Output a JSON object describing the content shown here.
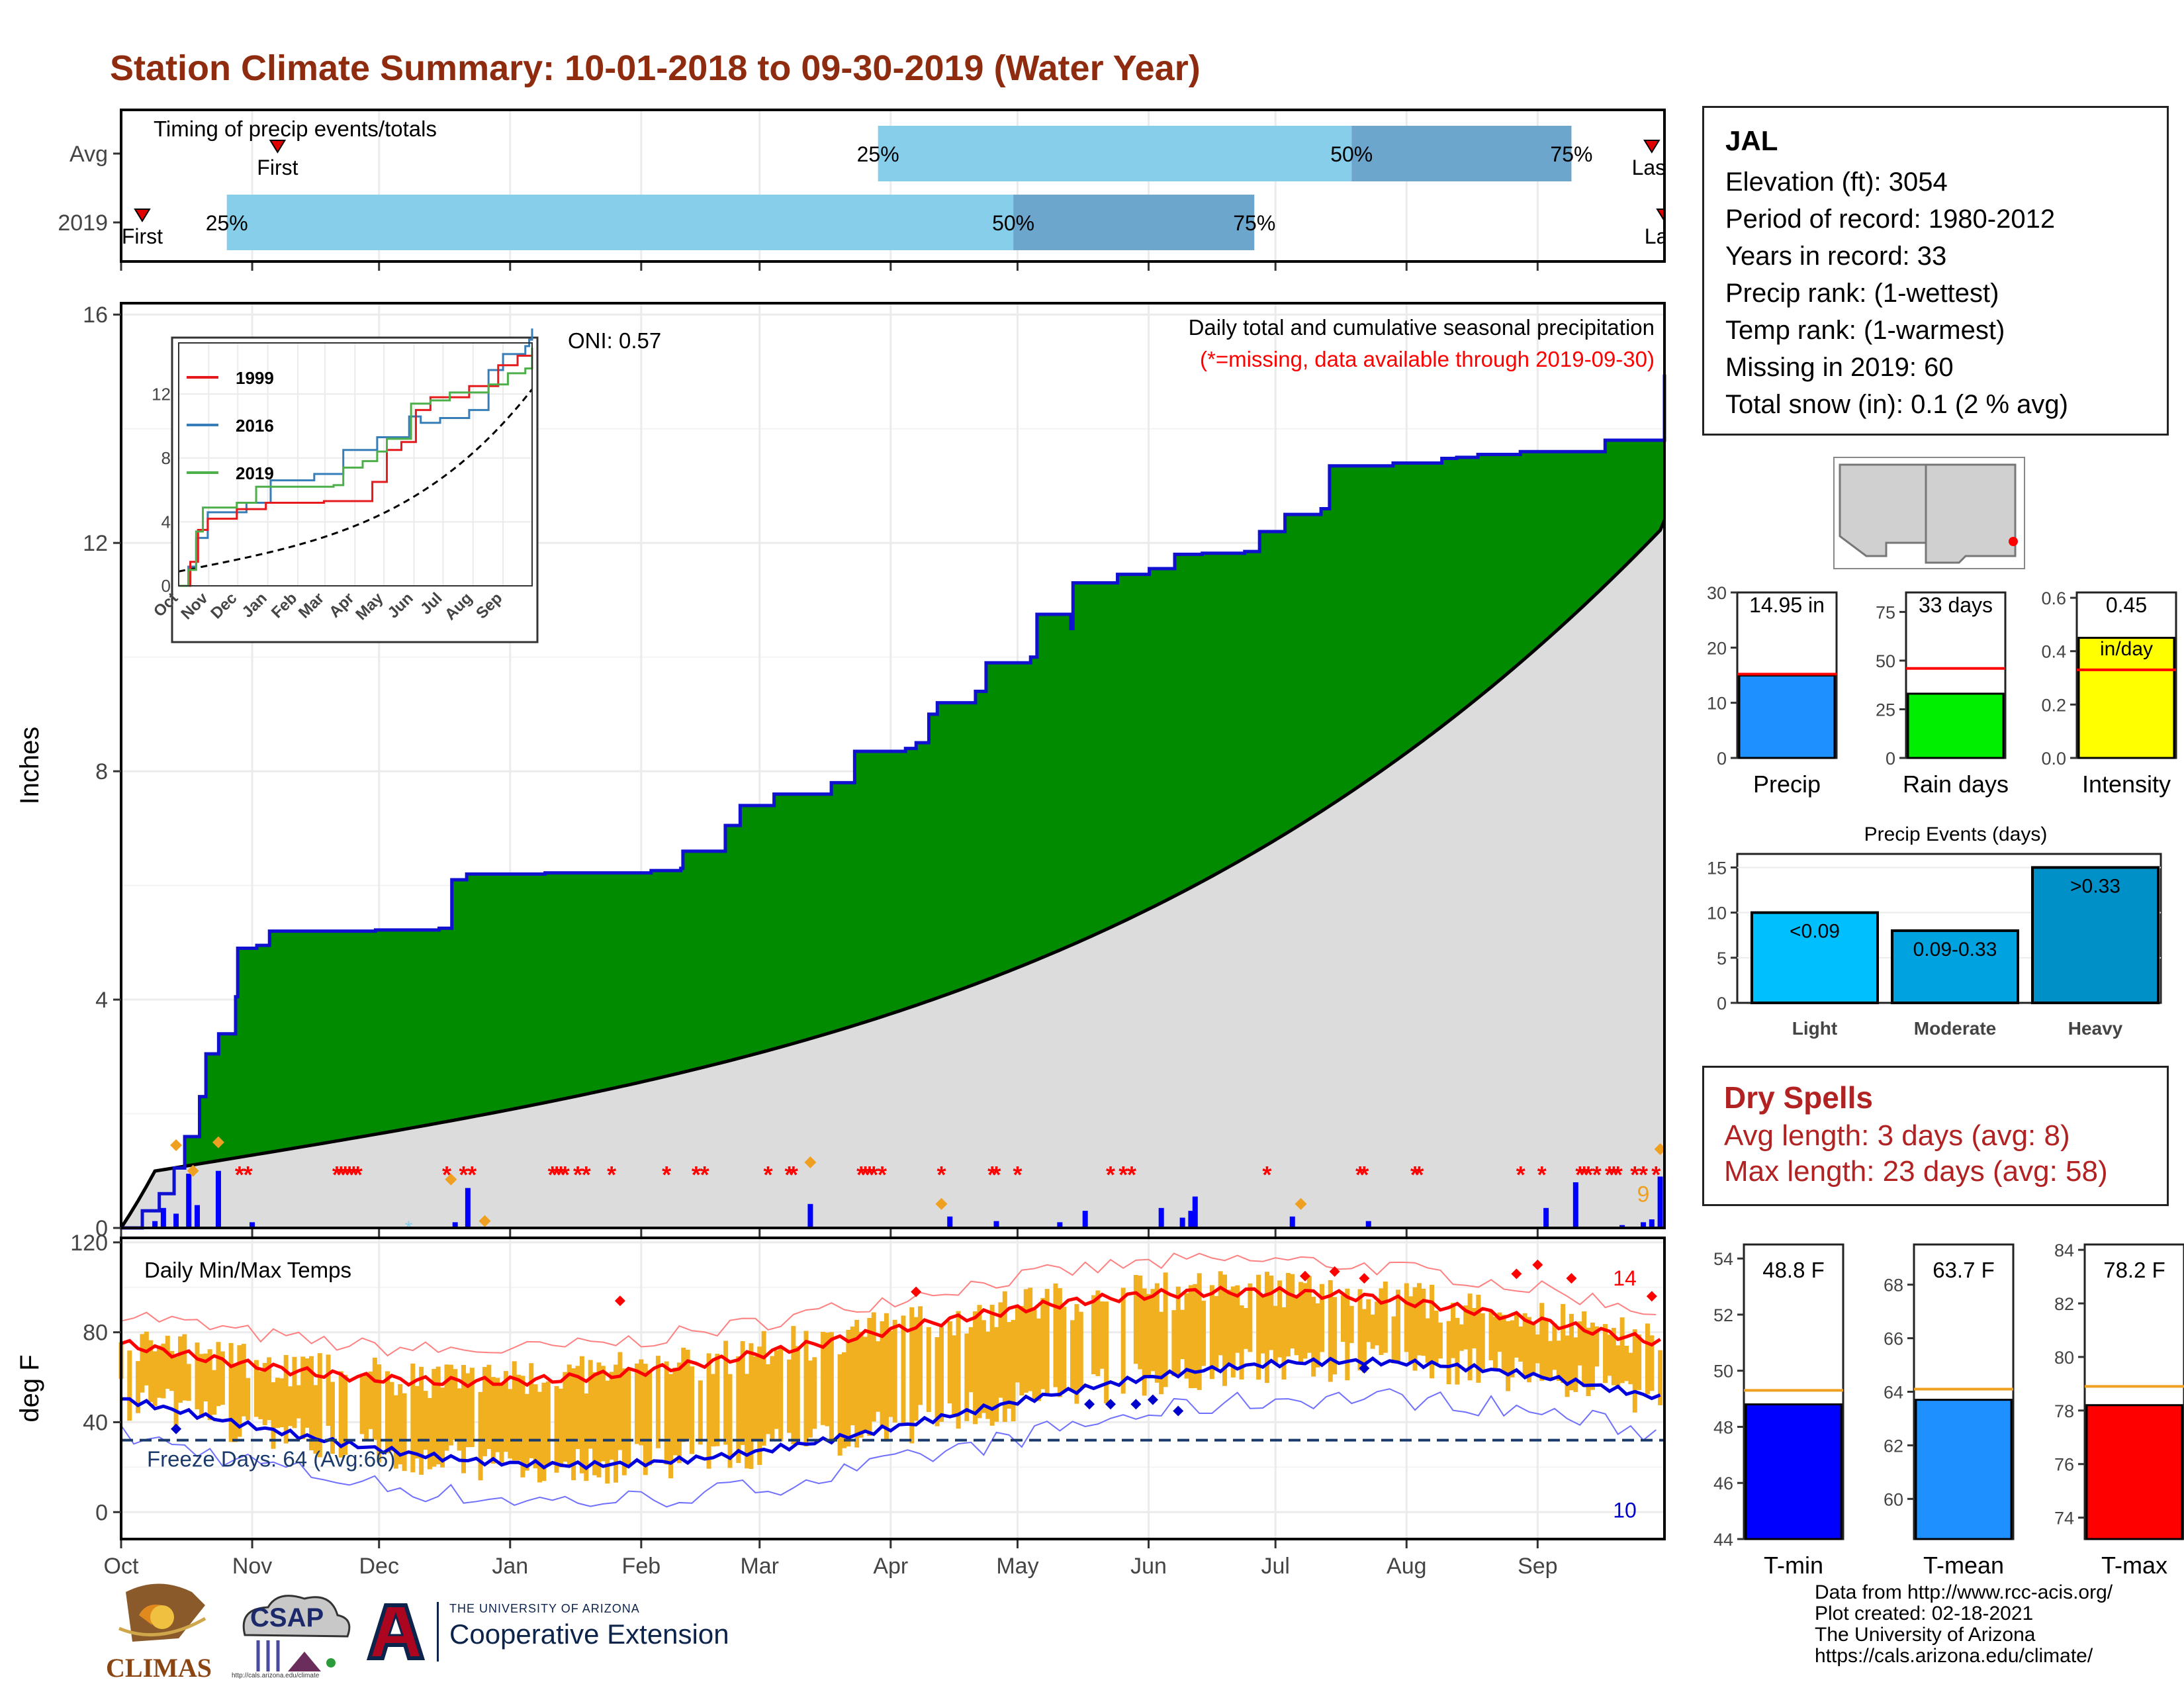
{
  "title": "Station Climate Summary: 10-01-2018 to 09-30-2019 (Water Year)",
  "timing": {
    "label": "Timing of precip events/totals",
    "rows": [
      "Avg",
      "2019"
    ],
    "pct_labels": [
      "25%",
      "50%",
      "75%"
    ],
    "first_label": "First",
    "last_label": "Last",
    "avg": {
      "first_day": 37,
      "p25": 179,
      "p50": 291,
      "p75": 343,
      "last_day": 362
    },
    "y2019": {
      "first_day": 5,
      "p25": 25,
      "p50": 211,
      "p75": 268,
      "last_day": 365
    }
  },
  "station": {
    "name": "JAL",
    "lines": [
      "Elevation (ft): 3054",
      "Period of record: 1980-2012",
      "Years in record: 33",
      "Precip rank:  (1-wettest)",
      "Temp rank:  (1-warmest)",
      "Missing in 2019: 60",
      "Total snow (in): 0.1 (2 % avg)"
    ]
  },
  "main_panel": {
    "title": "Daily total and cumulative seasonal precipitation",
    "subtitle": "(*=missing, data available through 2019-09-30)",
    "oni": "ONI: 0.57",
    "ylabel": "Inches",
    "count_label": "9"
  },
  "months": [
    "Oct",
    "Nov",
    "Dec",
    "Jan",
    "Feb",
    "Mar",
    "Apr",
    "May",
    "Jun",
    "Jul",
    "Aug",
    "Sep"
  ],
  "temp_panel": {
    "title": "Daily Min/Max Temps",
    "ylabel": "deg F",
    "freeze": "Freeze Days: 64 (Avg:66)",
    "hot_count": "14",
    "cold_count": "10"
  },
  "inset": {
    "series": [
      "1999",
      "2016",
      "2019"
    ],
    "colors": {
      "1999": "#e41a1c",
      "2016": "#377eb8",
      "2019": "#4daf4a"
    },
    "months": [
      "Oct",
      "Nov",
      "Dec",
      "Jan",
      "Feb",
      "Mar",
      "Apr",
      "May",
      "Jun",
      "Jul",
      "Aug",
      "Sep"
    ]
  },
  "mini_bars": [
    {
      "label": "Precip",
      "value_text": "14.95 in",
      "value": 14.95,
      "avg": 15.2,
      "ylim": [
        0,
        30
      ],
      "ticks": [
        "0",
        "10",
        "20",
        "30"
      ],
      "color": "#1e90ff"
    },
    {
      "label": "Rain days",
      "value_text": "33 days",
      "value": 33,
      "avg": 46,
      "ylim": [
        0,
        85
      ],
      "ticks": [
        "0",
        "25",
        "50",
        "75"
      ],
      "color": "#00ee00"
    },
    {
      "label": "Intensity",
      "value_text": "0.45",
      "value_text2": "in/day",
      "value": 0.45,
      "avg": 0.33,
      "ylim": [
        0,
        0.62
      ],
      "ticks": [
        "0.0",
        "0.2",
        "0.4",
        "0.6"
      ],
      "color": "#ffff00"
    }
  ],
  "events": {
    "title": "Precip Events (days)",
    "bars": [
      {
        "label": "Light",
        "inner": "<0.09",
        "value": 10,
        "color": "#00bfff"
      },
      {
        "label": "Moderate",
        "inner": "0.09-0.33",
        "value": 8,
        "color": "#00a2e0"
      },
      {
        "label": "Heavy",
        "inner": ">0.33",
        "value": 15,
        "color": "#0090c8"
      }
    ],
    "ticks": [
      "0",
      "5",
      "10",
      "15"
    ]
  },
  "dry_spells": {
    "title": "Dry Spells",
    "lines": [
      "Avg length: 3 days (avg: 8)",
      "Max length: 23 days (avg: 58)"
    ]
  },
  "temp_bars": [
    {
      "label": "T-min",
      "value_text": "48.8 F",
      "value": 48.8,
      "avg": 49.3,
      "ylim": [
        44,
        54.5
      ],
      "ticks": [
        "44",
        "46",
        "48",
        "50",
        "52",
        "54"
      ],
      "color": "#0000ff"
    },
    {
      "label": "T-mean",
      "value_text": "63.7 F",
      "value": 63.7,
      "avg": 64.1,
      "ylim": [
        58.5,
        69.5
      ],
      "ticks": [
        "60",
        "62",
        "64",
        "66",
        "68"
      ],
      "color": "#1e90ff"
    },
    {
      "label": "T-max",
      "value_text": "78.2 F",
      "value": 78.2,
      "avg": 78.9,
      "ylim": [
        73.2,
        84.2
      ],
      "ticks": [
        "74",
        "76",
        "78",
        "80",
        "82",
        "84"
      ],
      "color": "#ff0000"
    }
  ],
  "footer": [
    "Data from http://www.rcc-acis.org/",
    "Plot created: 02-18-2021",
    "The University of Arizona",
    "https://cals.arizona.edu/climate/"
  ],
  "logos": {
    "climas": "CLIMAS",
    "csap": "CSAP",
    "csap_url": "http://cals.arizona.edu/climate",
    "ua_small": "THE UNIVERSITY OF ARIZONA",
    "ua_big": "Cooperative Extension"
  },
  "chart_data": {
    "type": "area",
    "ylim": [
      0,
      16.2
    ],
    "yticks": [
      0,
      4,
      8,
      12,
      16
    ],
    "cumulative_2019": [
      [
        0,
        0
      ],
      [
        10,
        0.3
      ],
      [
        18,
        0.6
      ],
      [
        25,
        1.05
      ],
      [
        30,
        1.6
      ],
      [
        37,
        2.3
      ],
      [
        40,
        3.05
      ],
      [
        46,
        3.4
      ],
      [
        54,
        4.05
      ],
      [
        55,
        4.9
      ],
      [
        64,
        4.95
      ],
      [
        70,
        5.2
      ],
      [
        120,
        5.22
      ],
      [
        150,
        5.25
      ],
      [
        156,
        6.1
      ],
      [
        163,
        6.2
      ],
      [
        200,
        6.22
      ],
      [
        250,
        6.26
      ],
      [
        264,
        6.3
      ],
      [
        265,
        6.6
      ],
      [
        285,
        7.05
      ],
      [
        292,
        7.4
      ],
      [
        308,
        7.6
      ],
      [
        330,
        7.6
      ],
      [
        335,
        7.8
      ],
      [
        346,
        8.35
      ],
      [
        370,
        8.4
      ],
      [
        375,
        8.5
      ],
      [
        381,
        9.0
      ],
      [
        385,
        9.2
      ],
      [
        400,
        9.2
      ],
      [
        403,
        9.4
      ],
      [
        408,
        9.9
      ],
      [
        429,
        10.0
      ],
      [
        432,
        10.75
      ],
      [
        448,
        10.5
      ],
      [
        449,
        11.3
      ],
      [
        460,
        11.3
      ],
      [
        470,
        11.45
      ],
      [
        485,
        11.55
      ],
      [
        497,
        11.8
      ],
      [
        510,
        11.82
      ],
      [
        530,
        11.85
      ],
      [
        537,
        12.2
      ],
      [
        541,
        12.2
      ],
      [
        549,
        12.5
      ],
      [
        566,
        12.6
      ],
      [
        570,
        13.35
      ],
      [
        600,
        13.4
      ],
      [
        623,
        13.48
      ],
      [
        630,
        13.5
      ],
      [
        640,
        13.55
      ],
      [
        660,
        13.6
      ],
      [
        700,
        13.8
      ],
      [
        728,
        14.95
      ]
    ],
    "cumulative_avg_endpoint": 12.4
  }
}
